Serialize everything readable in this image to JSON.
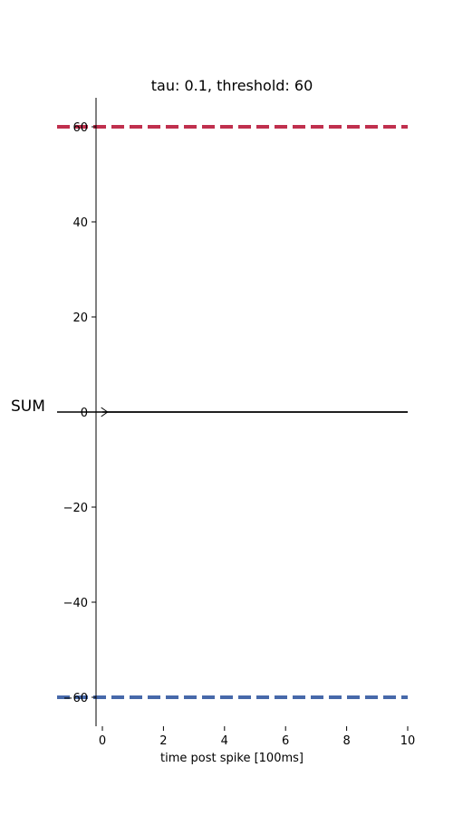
{
  "chart_data": {
    "type": "line",
    "title": "tau: 0.1, threshold: 60",
    "xlabel": "time post spike [100ms]",
    "ylabel": "SUM",
    "xlim": [
      -0.2,
      10
    ],
    "ylim": [
      -66,
      66
    ],
    "x_ticks": [
      0,
      2,
      4,
      6,
      8,
      10
    ],
    "x_tick_labels": [
      "0",
      "2",
      "4",
      "6",
      "8",
      "10"
    ],
    "y_ticks": [
      -60,
      -40,
      -20,
      0,
      20,
      40,
      60
    ],
    "y_tick_labels": [
      "−60",
      "−40",
      "−20",
      "0",
      "20",
      "40",
      "60"
    ],
    "grid": false,
    "series": [
      {
        "x": [
          0,
          10
        ],
        "y": [
          0,
          0
        ],
        "color": "#000000",
        "style": "solid"
      }
    ],
    "reference_lines": [
      {
        "y": 60,
        "color": "#c0304e",
        "style": "dashed"
      },
      {
        "y": -60,
        "color": "#4769aa",
        "style": "dashed"
      },
      {
        "y": 0,
        "color": "#000000",
        "style": "solid"
      }
    ],
    "marker": {
      "x": 0.05,
      "y": 0,
      "symbol": "arrow-right"
    }
  }
}
